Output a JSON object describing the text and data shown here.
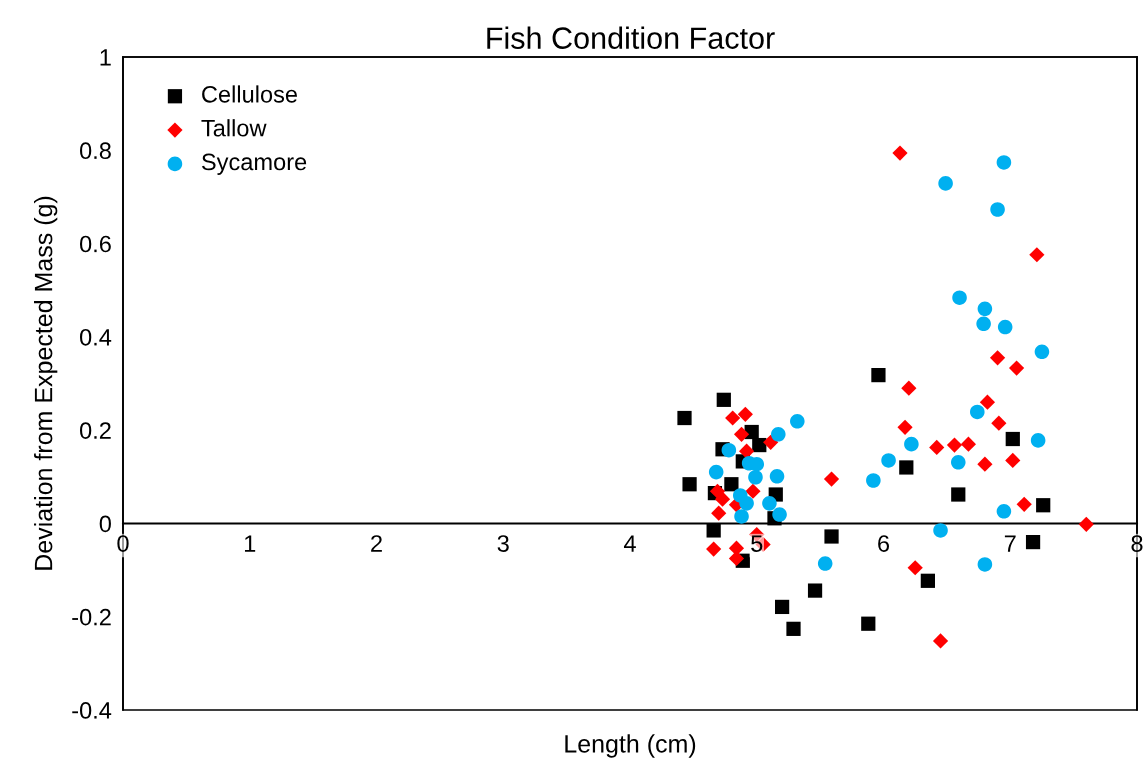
{
  "chart_data": {
    "type": "scatter",
    "title": "Fish Condition Factor",
    "xlabel": "Length (cm)",
    "ylabel": "Deviation from Expected Mass (g)",
    "xlim": [
      0,
      8
    ],
    "xticks": [
      0,
      1,
      2,
      3,
      4,
      5,
      6,
      7,
      8
    ],
    "ylim": [
      -0.4,
      1
    ],
    "yticks": [
      {
        "value": -0.4,
        "label": "-0.4"
      },
      {
        "value": -0.2,
        "label": "-0.2"
      },
      0,
      0.2,
      0.4,
      0.6,
      0.8,
      1
    ],
    "grid": false,
    "legend": "top left",
    "series": [
      {
        "name": "Cellulose",
        "color": "#000000",
        "marker": "square",
        "x": [
          4.74,
          4.43,
          4.96,
          5.02,
          4.73,
          4.89,
          4.47,
          4.8,
          4.67,
          5.15,
          4.66,
          4.89,
          5.14,
          5.96,
          6.18,
          6.59,
          7.02,
          7.26,
          7.18,
          5.59,
          5.46,
          6.35,
          5.88,
          5.2,
          5.29
        ],
        "values": [
          0.265,
          0.226,
          0.196,
          0.168,
          0.159,
          0.133,
          0.084,
          0.084,
          0.065,
          0.062,
          -0.015,
          -0.08,
          0.011,
          0.318,
          0.12,
          0.062,
          0.181,
          0.039,
          -0.04,
          -0.028,
          -0.144,
          -0.123,
          -0.215,
          -0.179,
          -0.226
        ]
      },
      {
        "name": "Tallow",
        "color": "#ff0000",
        "marker": "diamond",
        "x": [
          4.81,
          4.91,
          4.88,
          5.11,
          4.92,
          4.69,
          4.73,
          4.7,
          4.97,
          4.84,
          5.0,
          5.05,
          4.66,
          4.84,
          4.84,
          5.59,
          6.13,
          7.21,
          6.9,
          7.05,
          6.2,
          6.82,
          6.91,
          6.17,
          6.42,
          6.56,
          6.67,
          6.8,
          7.02,
          7.11,
          7.6,
          6.25,
          6.45
        ],
        "values": [
          0.226,
          0.234,
          0.191,
          0.174,
          0.155,
          0.069,
          0.052,
          0.022,
          0.069,
          0.04,
          -0.024,
          -0.045,
          -0.055,
          -0.053,
          -0.075,
          0.095,
          0.794,
          0.576,
          0.355,
          0.333,
          0.29,
          0.26,
          0.215,
          0.206,
          0.163,
          0.168,
          0.17,
          0.127,
          0.135,
          0.041,
          -0.002,
          -0.095,
          -0.252
        ]
      },
      {
        "name": "Sycamore",
        "color": "#00b0f0",
        "marker": "circle",
        "x": [
          5.32,
          5.17,
          4.78,
          4.68,
          4.94,
          5.0,
          4.99,
          5.16,
          4.87,
          4.92,
          5.1,
          5.18,
          4.88,
          5.54,
          6.95,
          6.49,
          6.9,
          6.6,
          6.8,
          6.79,
          6.96,
          7.25,
          6.74,
          7.22,
          6.22,
          6.04,
          6.59,
          5.92,
          6.95,
          6.45,
          6.8
        ],
        "values": [
          0.219,
          0.191,
          0.157,
          0.11,
          0.129,
          0.127,
          0.099,
          0.101,
          0.06,
          0.043,
          0.043,
          0.019,
          0.015,
          -0.086,
          0.774,
          0.729,
          0.673,
          0.484,
          0.46,
          0.428,
          0.421,
          0.368,
          0.239,
          0.178,
          0.17,
          0.135,
          0.131,
          0.092,
          0.026,
          -0.015,
          -0.088
        ]
      }
    ]
  }
}
